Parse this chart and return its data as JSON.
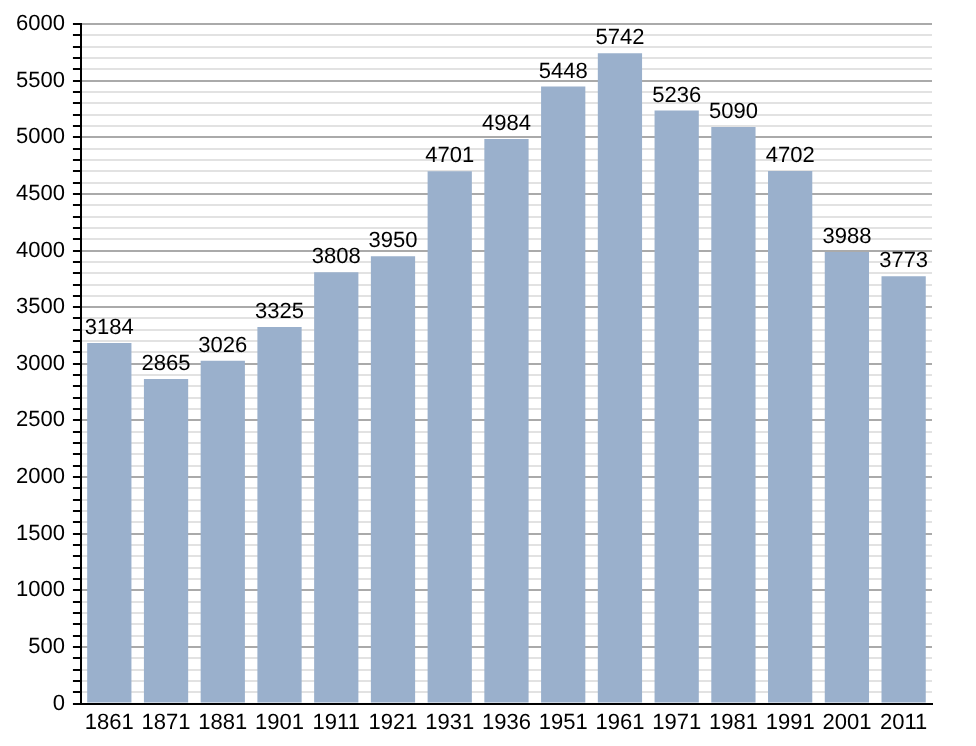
{
  "chart_data": {
    "type": "bar",
    "categories": [
      "1861",
      "1871",
      "1881",
      "1901",
      "1911",
      "1921",
      "1931",
      "1936",
      "1951",
      "1961",
      "1971",
      "1981",
      "1991",
      "2001",
      "2011"
    ],
    "values": [
      3184,
      2865,
      3026,
      3325,
      3808,
      3950,
      4701,
      4984,
      5448,
      5742,
      5236,
      5090,
      4702,
      3988,
      3773
    ],
    "color": "#9ab0cc",
    "data_labels": true,
    "grid": "y",
    "legend": false,
    "ylim": [
      0,
      6000
    ],
    "yticks": [
      0,
      {
        "value": 100,
        "label": null
      },
      {
        "value": 200,
        "label": null
      },
      {
        "value": 300,
        "label": null
      },
      {
        "value": 400,
        "label": null
      },
      500,
      {
        "value": 600,
        "label": null
      },
      {
        "value": 700,
        "label": null
      },
      {
        "value": 800,
        "label": null
      },
      {
        "value": 900,
        "label": null
      },
      1000,
      {
        "value": 1100,
        "label": null
      },
      {
        "value": 1200,
        "label": null
      },
      {
        "value": 1300,
        "label": null
      },
      {
        "value": 1400,
        "label": null
      },
      1500,
      {
        "value": 1600,
        "label": null
      },
      {
        "value": 1700,
        "label": null
      },
      {
        "value": 1800,
        "label": null
      },
      {
        "value": 1900,
        "label": null
      },
      2000,
      {
        "value": 2100,
        "label": null
      },
      {
        "value": 2200,
        "label": null
      },
      {
        "value": 2300,
        "label": null
      },
      {
        "value": 2400,
        "label": null
      },
      2500,
      {
        "value": 2600,
        "label": null
      },
      {
        "value": 2700,
        "label": null
      },
      {
        "value": 2800,
        "label": null
      },
      {
        "value": 2900,
        "label": null
      },
      3000,
      {
        "value": 3100,
        "label": null
      },
      {
        "value": 3200,
        "label": null
      },
      {
        "value": 3300,
        "label": null
      },
      {
        "value": 3400,
        "label": null
      },
      3500,
      {
        "value": 3600,
        "label": null
      },
      {
        "value": 3700,
        "label": null
      },
      {
        "value": 3800,
        "label": null
      },
      {
        "value": 3900,
        "label": null
      },
      4000,
      {
        "value": 4100,
        "label": null
      },
      {
        "value": 4200,
        "label": null
      },
      {
        "value": 4300,
        "label": null
      },
      {
        "value": 4400,
        "label": null
      },
      4500,
      {
        "value": 4600,
        "label": null
      },
      {
        "value": 4700,
        "label": null
      },
      {
        "value": 4800,
        "label": null
      },
      {
        "value": 4900,
        "label": null
      },
      5000,
      {
        "value": 5100,
        "label": null
      },
      {
        "value": 5200,
        "label": null
      },
      {
        "value": 5300,
        "label": null
      },
      {
        "value": 5400,
        "label": null
      },
      5500,
      {
        "value": 5600,
        "label": null
      },
      {
        "value": 5700,
        "label": null
      },
      {
        "value": 5800,
        "label": null
      },
      {
        "value": 5900,
        "label": null
      },
      6000
    ]
  }
}
